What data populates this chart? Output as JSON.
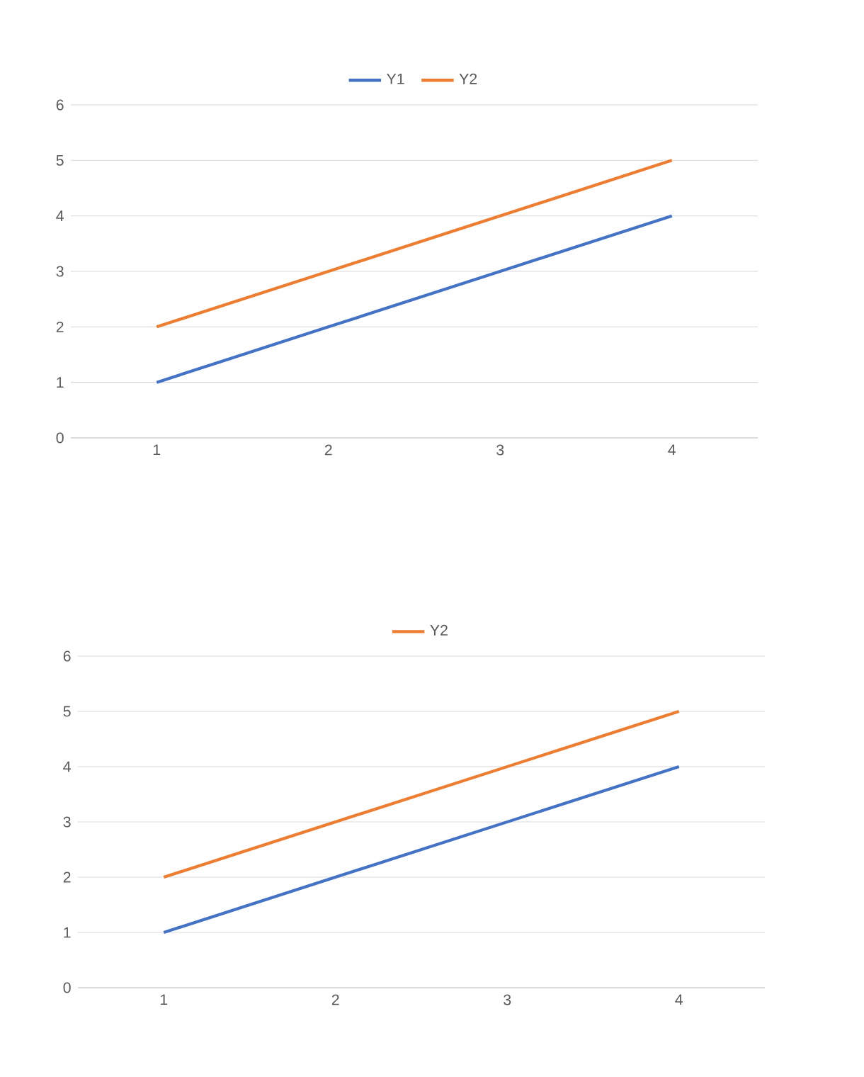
{
  "chart_data": [
    {
      "type": "line",
      "categories": [
        "1",
        "2",
        "3",
        "4"
      ],
      "ylim": [
        0,
        6
      ],
      "yticks": [
        0,
        1,
        2,
        3,
        4,
        5,
        6
      ],
      "grid": "y",
      "legend": "top",
      "marker": "none",
      "series": [
        {
          "name": "Y1",
          "color": "#4472c4",
          "values": [
            1,
            2,
            3,
            4
          ]
        },
        {
          "name": "Y2",
          "color": "#ed7d31",
          "values": [
            2,
            3,
            4,
            5
          ]
        }
      ]
    },
    {
      "type": "line",
      "categories": [
        "1",
        "2",
        "3",
        "4"
      ],
      "ylim": [
        0,
        6
      ],
      "yticks": [
        0,
        1,
        2,
        3,
        4,
        5,
        6
      ],
      "grid": "y",
      "legend": "top",
      "marker": "none",
      "series": [
        {
          "color": "#4472c4",
          "values": [
            1,
            2,
            3,
            4
          ]
        },
        {
          "name": "Y2",
          "color": "#ed7d31",
          "values": [
            2,
            3,
            4,
            5
          ]
        }
      ]
    }
  ]
}
